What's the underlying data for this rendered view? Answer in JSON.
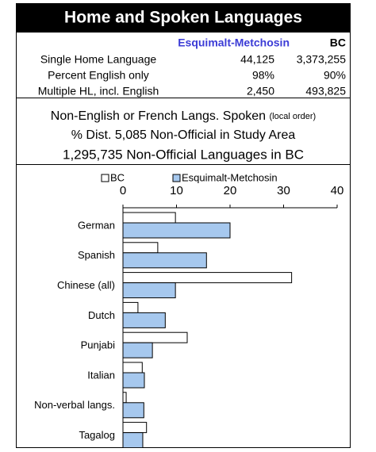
{
  "header": {
    "title": "Home and Spoken Languages"
  },
  "table": {
    "columns": [
      "Esquimalt-Metchosin",
      "BC"
    ],
    "rows": [
      [
        "Single Home Language",
        "44,125",
        "3,373,255"
      ],
      [
        "Percent English only",
        "98%",
        "90%"
      ],
      [
        "Multiple HL, incl. English",
        "2,450",
        "493,825"
      ]
    ]
  },
  "notes": {
    "heading": "Non-English or French Langs. Spoken",
    "heading_note": "(local order)",
    "study_area": "% Dist. 5,085 Non-Official in Study Area",
    "bc": "1,295,735 Non-Official Languages in BC"
  },
  "chart_data": {
    "type": "hbar",
    "categories": [
      "German",
      "Spanish",
      "Chinese (all)",
      "Dutch",
      "Punjabi",
      "Italian",
      "Non-verbal langs.",
      "Tagalog"
    ],
    "series": [
      {
        "name": "BC",
        "color": "#ffffff",
        "values": [
          9.8,
          6.5,
          31.5,
          2.8,
          12,
          3.6,
          0.6,
          4.4
        ]
      },
      {
        "name": "Esquimalt-Metchosin",
        "color": "#a6c8ee",
        "values": [
          20,
          15.6,
          9.8,
          7.9,
          5.5,
          4,
          3.9,
          3.7
        ]
      }
    ],
    "xlim": [
      0,
      40
    ],
    "xticks": [
      0,
      10,
      20,
      30,
      40
    ],
    "legend": "top"
  }
}
